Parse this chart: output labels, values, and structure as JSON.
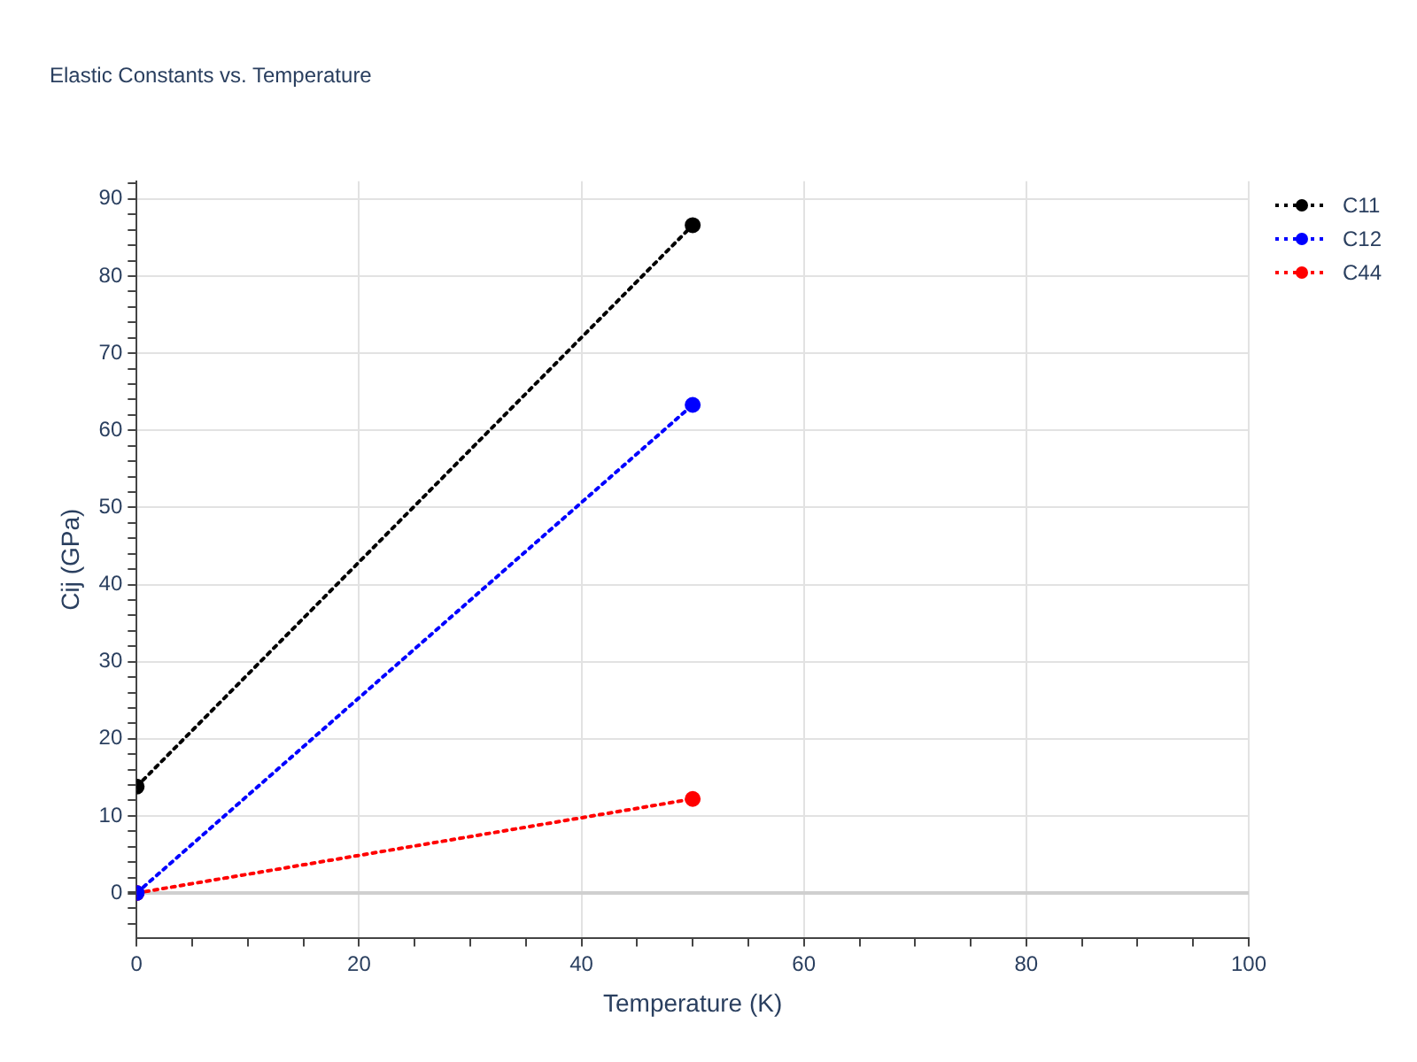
{
  "chart_data": {
    "type": "line",
    "title": "Elastic Constants vs. Temperature",
    "xlabel": "Temperature (K)",
    "ylabel": "Cij (GPa)",
    "x": [
      0,
      50
    ],
    "series": [
      {
        "name": "C11",
        "color": "#000000",
        "values": [
          13.8,
          86.6
        ]
      },
      {
        "name": "C12",
        "color": "#0000ff",
        "values": [
          0,
          63.3
        ]
      },
      {
        "name": "C44",
        "color": "#ff0000",
        "values": [
          0,
          12.2
        ]
      }
    ],
    "xlim": [
      0,
      100
    ],
    "xticks": [
      0,
      {
        "value": 5,
        "label": null
      },
      {
        "value": 10,
        "label": null
      },
      {
        "value": 15,
        "label": null
      },
      20,
      {
        "value": 25,
        "label": null
      },
      {
        "value": 30,
        "label": null
      },
      {
        "value": 35,
        "label": null
      },
      40,
      {
        "value": 45,
        "label": null
      },
      {
        "value": 50,
        "label": null
      },
      {
        "value": 55,
        "label": null
      },
      60,
      {
        "value": 65,
        "label": null
      },
      {
        "value": 70,
        "label": null
      },
      {
        "value": 75,
        "label": null
      },
      80,
      {
        "value": 85,
        "label": null
      },
      {
        "value": 90,
        "label": null
      },
      {
        "value": 95,
        "label": null
      },
      100
    ],
    "ylim": [
      -5.8,
      92.3
    ],
    "yticks": [
      {
        "value": -4,
        "label": null
      },
      {
        "value": -2,
        "label": null
      },
      0,
      {
        "value": 2,
        "label": null
      },
      {
        "value": 4,
        "label": null
      },
      {
        "value": 6,
        "label": null
      },
      {
        "value": 8,
        "label": null
      },
      10,
      {
        "value": 12,
        "label": null
      },
      {
        "value": 14,
        "label": null
      },
      {
        "value": 16,
        "label": null
      },
      {
        "value": 18,
        "label": null
      },
      20,
      {
        "value": 22,
        "label": null
      },
      {
        "value": 24,
        "label": null
      },
      {
        "value": 26,
        "label": null
      },
      {
        "value": 28,
        "label": null
      },
      30,
      {
        "value": 32,
        "label": null
      },
      {
        "value": 34,
        "label": null
      },
      {
        "value": 36,
        "label": null
      },
      {
        "value": 38,
        "label": null
      },
      40,
      {
        "value": 42,
        "label": null
      },
      {
        "value": 44,
        "label": null
      },
      {
        "value": 46,
        "label": null
      },
      {
        "value": 48,
        "label": null
      },
      50,
      {
        "value": 52,
        "label": null
      },
      {
        "value": 54,
        "label": null
      },
      {
        "value": 56,
        "label": null
      },
      {
        "value": 58,
        "label": null
      },
      60,
      {
        "value": 62,
        "label": null
      },
      {
        "value": 64,
        "label": null
      },
      {
        "value": 66,
        "label": null
      },
      {
        "value": 68,
        "label": null
      },
      70,
      {
        "value": 72,
        "label": null
      },
      {
        "value": 74,
        "label": null
      },
      {
        "value": 76,
        "label": null
      },
      {
        "value": 78,
        "label": null
      },
      80,
      {
        "value": 82,
        "label": null
      },
      {
        "value": 84,
        "label": null
      },
      {
        "value": 86,
        "label": null
      },
      {
        "value": 88,
        "label": null
      },
      90,
      {
        "value": 92,
        "label": null
      }
    ],
    "grid": true,
    "legend": "top right",
    "marker": "circle",
    "line_style": "dotted"
  }
}
